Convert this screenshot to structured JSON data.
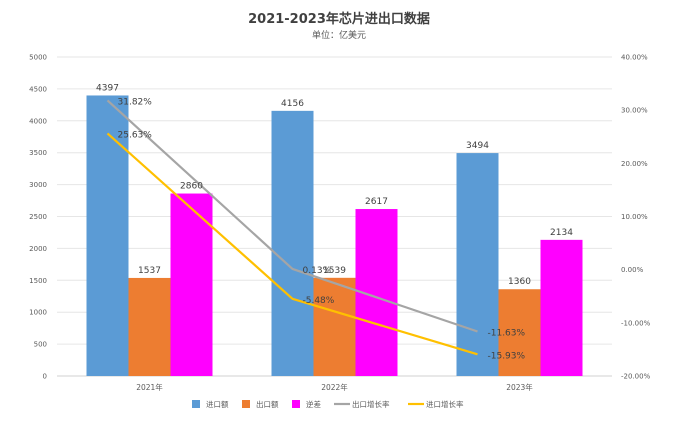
{
  "chart_data": {
    "type": "bar",
    "title": "2021-2023年芯片进出口数据",
    "subtitle": "单位：亿美元",
    "categories": [
      "2021年",
      "2022年",
      "2023年"
    ],
    "series": [
      {
        "name": "进口额",
        "kind": "bar",
        "axis": "left",
        "color": "#5b9bd5",
        "values": [
          4397,
          4156,
          3494
        ],
        "labels": [
          "4397",
          "4156",
          "3494"
        ]
      },
      {
        "name": "出口额",
        "kind": "bar",
        "axis": "left",
        "color": "#ed7d31",
        "values": [
          1537,
          1539,
          1360
        ],
        "labels": [
          "1537",
          "1539",
          "1360"
        ]
      },
      {
        "name": "逆差",
        "kind": "bar",
        "axis": "left",
        "color": "#ff00ff",
        "values": [
          2860,
          2617,
          2134
        ],
        "labels": [
          "2860",
          "2617",
          "2134"
        ]
      },
      {
        "name": "出口增长率",
        "kind": "line",
        "axis": "right",
        "color": "#a5a5a5",
        "values": [
          31.82,
          0.13,
          -11.63
        ],
        "labels": [
          "31.82%",
          "0.13%",
          "-11.63%"
        ]
      },
      {
        "name": "进口增长率",
        "kind": "line",
        "axis": "right",
        "color": "#ffc000",
        "values": [
          25.63,
          -5.48,
          -15.93
        ],
        "labels": [
          "25.63%",
          "-5.48%",
          "-15.93%"
        ]
      }
    ],
    "y_left": {
      "min": 0,
      "max": 5000,
      "step": 500,
      "ticks": [
        "0",
        "500",
        "1000",
        "1500",
        "2000",
        "2500",
        "3000",
        "3500",
        "4000",
        "4500",
        "5000"
      ]
    },
    "y_right": {
      "min": -20,
      "max": 40,
      "step": 10,
      "ticks": [
        "-20.00%",
        "-10.00%",
        "0.00%",
        "10.00%",
        "20.00%",
        "30.00%",
        "40.00%"
      ]
    },
    "grid": true,
    "legend_position": "bottom"
  }
}
